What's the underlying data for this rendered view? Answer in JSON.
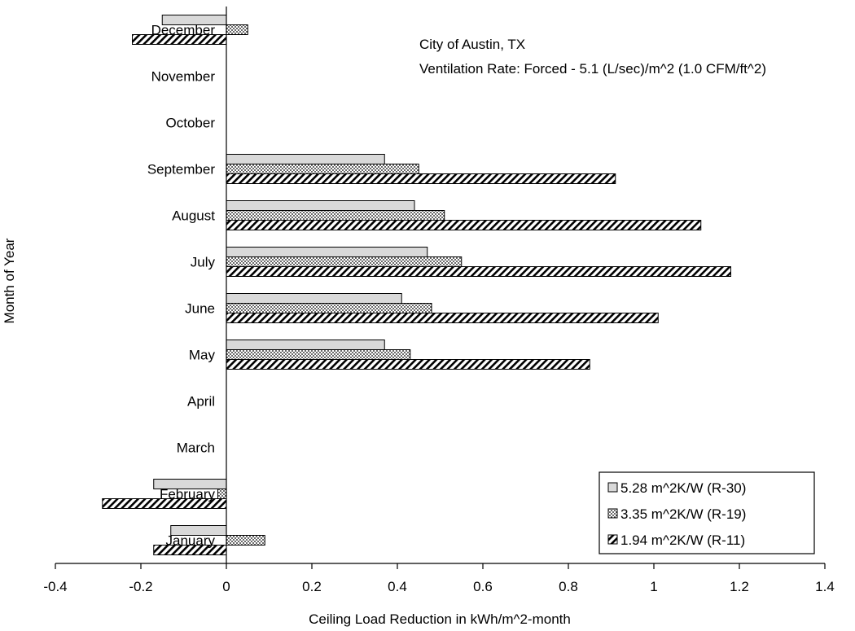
{
  "chart_data": {
    "type": "bar",
    "orientation": "horizontal",
    "categories": [
      "January",
      "February",
      "March",
      "April",
      "May",
      "June",
      "July",
      "August",
      "September",
      "October",
      "November",
      "December"
    ],
    "series": [
      {
        "name": "5.28 m^2K/W (R-30)",
        "values": [
          -0.13,
          -0.17,
          0,
          0,
          0.37,
          0.41,
          0.47,
          0.44,
          0.37,
          0,
          0,
          -0.15
        ],
        "fill": "solid-gray"
      },
      {
        "name": "3.35 m^2K/W (R-19)",
        "values": [
          0.09,
          -0.02,
          0,
          0,
          0.43,
          0.48,
          0.55,
          0.51,
          0.45,
          0,
          0,
          0.05
        ],
        "fill": "dotted"
      },
      {
        "name": "1.94 m^2K/W (R-11)",
        "values": [
          -0.17,
          -0.29,
          0,
          0,
          0.85,
          1.01,
          1.18,
          1.11,
          0.91,
          0,
          0,
          -0.22
        ],
        "fill": "diagonal-hatch"
      }
    ],
    "xlabel": "Ceiling Load Reduction in kWh/m^2-month",
    "ylabel": "Month of Year",
    "xlim": [
      -0.4,
      1.4
    ],
    "xticks": [
      "-0.4",
      "-0.2",
      "0",
      "0.2",
      "0.4",
      "0.6",
      "0.8",
      "1",
      "1.2",
      "1.4"
    ],
    "annotations": [
      "City of Austin, TX",
      "Ventilation Rate:  Forced - 5.1 (L/sec)/m^2 (1.0 CFM/ft^2)"
    ],
    "legend_position": "bottom-right",
    "grid": false,
    "colors": {
      "solid_gray": "#d9d9d9",
      "pattern_bg": "#ffffff",
      "ink": "#000000"
    }
  }
}
